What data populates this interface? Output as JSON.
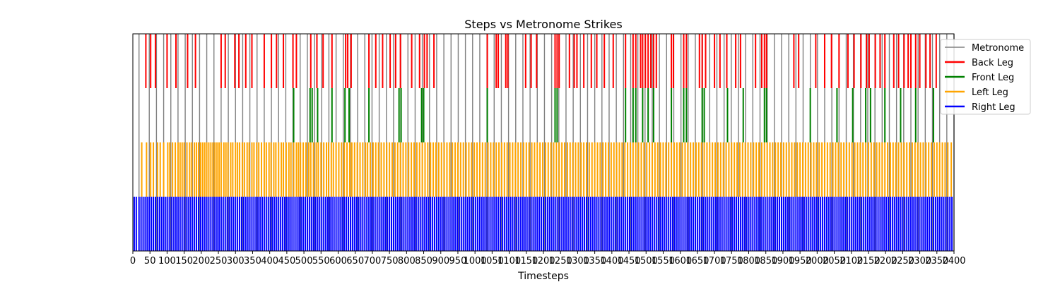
{
  "chart_data": {
    "type": "event-raster",
    "title": "Steps vs Metronome Strikes",
    "xlabel": "Timesteps",
    "ylabel": "",
    "xlim": [
      0,
      2400
    ],
    "xticks": [
      0,
      50,
      100,
      150,
      200,
      250,
      300,
      350,
      400,
      450,
      500,
      550,
      600,
      650,
      700,
      750,
      800,
      850,
      900,
      950,
      1000,
      1050,
      1100,
      1150,
      1200,
      1250,
      1300,
      1350,
      1400,
      1450,
      1500,
      1550,
      1600,
      1650,
      1700,
      1750,
      1800,
      1850,
      1900,
      1950,
      2000,
      2050,
      2100,
      2150,
      2200,
      2250,
      2300,
      2350,
      2400
    ],
    "legend_position": "upper right",
    "series": [
      {
        "name": "Metronome",
        "color": "#808080",
        "x": [
          18,
          48,
          69,
          90,
          111,
          132,
          153,
          174,
          195,
          216,
          237,
          258,
          279,
          300,
          321,
          342,
          363,
          384,
          405,
          426,
          447,
          468,
          489,
          510,
          531,
          552,
          573,
          594,
          615,
          636,
          657,
          678,
          699,
          720,
          741,
          762,
          783,
          804,
          825,
          846,
          867,
          888,
          909,
          930,
          951,
          972,
          993,
          1014,
          1035,
          1056,
          1077,
          1098,
          1119,
          1140,
          1161,
          1182,
          1203,
          1224,
          1245,
          1266,
          1287,
          1308,
          1329,
          1350,
          1371,
          1392,
          1413,
          1434,
          1455,
          1476,
          1497,
          1518,
          1539,
          1560,
          1581,
          1602,
          1623,
          1644,
          1665,
          1686,
          1707,
          1728,
          1749,
          1770,
          1791,
          1812,
          1833,
          1854,
          1875,
          1896,
          1917,
          1938,
          1959,
          1980,
          2001,
          2022,
          2043,
          2064,
          2085,
          2106,
          2127,
          2148,
          2169,
          2190,
          2211,
          2232,
          2253,
          2274,
          2295,
          2316,
          2337,
          2358,
          2379,
          2400
        ]
      },
      {
        "name": "Back Leg",
        "color": "#ff0000",
        "x": [
          38,
          52,
          66,
          100,
          126,
          160,
          183,
          258,
          270,
          298,
          310,
          330,
          348,
          384,
          405,
          420,
          440,
          468,
          478,
          520,
          538,
          556,
          582,
          622,
          628,
          638,
          690,
          710,
          730,
          752,
          768,
          782,
          815,
          838,
          852,
          860,
          880,
          1036,
          1062,
          1068,
          1090,
          1096,
          1148,
          1164,
          1180,
          1234,
          1240,
          1246,
          1276,
          1290,
          1298,
          1318,
          1340,
          1356,
          1378,
          1404,
          1440,
          1462,
          1470,
          1484,
          1490,
          1498,
          1506,
          1514,
          1522,
          1530,
          1574,
          1580,
          1610,
          1618,
          1656,
          1664,
          1674,
          1700,
          1716,
          1736,
          1762,
          1776,
          1820,
          1838,
          1846,
          1852,
          1932,
          1946,
          1996,
          2022,
          2042,
          2064,
          2090,
          2108,
          2128,
          2144,
          2152,
          2170,
          2184,
          2198,
          2224,
          2238,
          2254,
          2266,
          2274,
          2288,
          2300,
          2318,
          2330,
          2348
        ]
      },
      {
        "name": "Front Leg",
        "color": "#008000",
        "x": [
          470,
          518,
          524,
          540,
          582,
          620,
          632,
          690,
          778,
          784,
          844,
          850,
          1036,
          1234,
          1240,
          1440,
          1462,
          1470,
          1490,
          1506,
          1522,
          1574,
          1610,
          1618,
          1664,
          1670,
          1738,
          1784,
          1846,
          1852,
          1980,
          2058,
          2104,
          2142,
          2156,
          2198,
          2244,
          2288,
          2340
        ]
      },
      {
        "name": "Left Leg",
        "color": "#ffa500",
        "x": [
          26,
          40,
          52,
          60,
          72,
          80,
          90,
          102,
          108,
          116,
          124,
          132,
          138,
          144,
          150,
          158,
          166,
          172,
          180,
          186,
          192,
          198,
          204,
          210,
          216,
          222,
          228,
          234,
          240,
          246,
          252,
          258,
          266,
          272,
          278,
          286,
          292,
          300,
          306,
          312,
          320,
          326,
          334,
          340,
          348,
          354,
          362,
          368,
          376,
          384,
          390,
          398,
          404,
          412,
          418,
          426,
          434,
          440,
          448,
          456,
          462,
          470,
          478,
          484,
          490,
          498,
          506,
          514,
          520,
          528,
          536,
          542,
          550,
          558,
          566,
          572,
          580,
          586,
          594,
          602,
          610,
          618,
          626,
          634,
          640,
          648,
          656,
          664,
          672,
          680,
          686,
          694,
          702,
          710,
          718,
          726,
          734,
          742,
          750,
          758,
          766,
          774,
          782,
          790,
          798,
          806,
          814,
          822,
          830,
          838,
          846,
          854,
          862,
          870,
          878,
          886,
          894,
          902,
          910,
          918,
          926,
          934,
          942,
          950,
          958,
          966,
          974,
          982,
          990,
          998,
          1006,
          1014,
          1022,
          1030,
          1038,
          1046,
          1054,
          1062,
          1070,
          1078,
          1086,
          1094,
          1102,
          1110,
          1118,
          1126,
          1134,
          1142,
          1150,
          1158,
          1166,
          1174,
          1182,
          1190,
          1198,
          1206,
          1214,
          1222,
          1230,
          1238,
          1246,
          1254,
          1262,
          1270,
          1278,
          1286,
          1294,
          1302,
          1310,
          1318,
          1326,
          1334,
          1342,
          1350,
          1358,
          1366,
          1374,
          1382,
          1390,
          1398,
          1406,
          1414,
          1422,
          1430,
          1438,
          1446,
          1454,
          1462,
          1470,
          1478,
          1486,
          1494,
          1502,
          1510,
          1518,
          1526,
          1534,
          1542,
          1550,
          1558,
          1566,
          1574,
          1582,
          1590,
          1598,
          1606,
          1614,
          1622,
          1630,
          1638,
          1646,
          1654,
          1662,
          1670,
          1678,
          1686,
          1694,
          1702,
          1710,
          1718,
          1726,
          1734,
          1742,
          1750,
          1758,
          1766,
          1774,
          1782,
          1790,
          1798,
          1806,
          1814,
          1822,
          1830,
          1838,
          1846,
          1854,
          1862,
          1870,
          1878,
          1886,
          1894,
          1902,
          1910,
          1918,
          1926,
          1934,
          1942,
          1950,
          1958,
          1966,
          1974,
          1982,
          1990,
          1998,
          2006,
          2014,
          2022,
          2030,
          2038,
          2046,
          2054,
          2062,
          2070,
          2078,
          2086,
          2094,
          2102,
          2110,
          2118,
          2126,
          2134,
          2142,
          2150,
          2158,
          2166,
          2174,
          2182,
          2190,
          2198,
          2206,
          2214,
          2222,
          2230,
          2238,
          2246,
          2254,
          2262,
          2270,
          2278,
          2286,
          2294,
          2302,
          2310,
          2318,
          2326,
          2334,
          2342,
          2350,
          2358,
          2366,
          2374,
          2382,
          2392
        ]
      },
      {
        "name": "Right Leg",
        "color": "#0000ff",
        "x": [
          4,
          10,
          18,
          24,
          30,
          36,
          42,
          48,
          54,
          60,
          66,
          72,
          78,
          84,
          90,
          96,
          102,
          108,
          114,
          120,
          126,
          132,
          138,
          144,
          150,
          156,
          162,
          168,
          174,
          180,
          186,
          192,
          198,
          204,
          210,
          216,
          222,
          228,
          234,
          240,
          246,
          252,
          258,
          264,
          270,
          276,
          282,
          288,
          294,
          300,
          306,
          312,
          318,
          324,
          330,
          336,
          342,
          348,
          354,
          360,
          366,
          372,
          378,
          384,
          390,
          396,
          402,
          408,
          414,
          420,
          426,
          432,
          438,
          444,
          450,
          456,
          462,
          468,
          474,
          480,
          486,
          492,
          498,
          504,
          510,
          516,
          522,
          528,
          534,
          540,
          546,
          552,
          558,
          564,
          570,
          576,
          582,
          588,
          594,
          600,
          606,
          612,
          618,
          624,
          630,
          636,
          642,
          648,
          654,
          660,
          666,
          672,
          678,
          684,
          690,
          696,
          702,
          708,
          714,
          720,
          726,
          732,
          738,
          744,
          750,
          756,
          762,
          768,
          774,
          780,
          786,
          792,
          798,
          804,
          810,
          816,
          822,
          828,
          834,
          840,
          846,
          852,
          858,
          864,
          870,
          876,
          882,
          888,
          894,
          900,
          906,
          912,
          918,
          924,
          930,
          936,
          942,
          948,
          954,
          960,
          966,
          972,
          978,
          984,
          990,
          996,
          1002,
          1008,
          1014,
          1020,
          1026,
          1032,
          1038,
          1044,
          1050,
          1056,
          1062,
          1068,
          1074,
          1080,
          1086,
          1092,
          1098,
          1104,
          1110,
          1116,
          1122,
          1128,
          1134,
          1140,
          1146,
          1152,
          1158,
          1164,
          1170,
          1176,
          1182,
          1188,
          1194,
          1200,
          1206,
          1212,
          1218,
          1224,
          1230,
          1236,
          1242,
          1248,
          1254,
          1260,
          1266,
          1272,
          1278,
          1284,
          1290,
          1296,
          1302,
          1308,
          1314,
          1320,
          1326,
          1332,
          1338,
          1344,
          1350,
          1356,
          1362,
          1368,
          1374,
          1380,
          1386,
          1392,
          1398,
          1404,
          1410,
          1416,
          1422,
          1428,
          1434,
          1440,
          1446,
          1452,
          1458,
          1464,
          1470,
          1476,
          1482,
          1488,
          1494,
          1500,
          1506,
          1512,
          1518,
          1524,
          1530,
          1536,
          1542,
          1548,
          1554,
          1560,
          1566,
          1572,
          1578,
          1584,
          1590,
          1596,
          1602,
          1608,
          1614,
          1620,
          1626,
          1632,
          1638,
          1644,
          1650,
          1656,
          1662,
          1668,
          1674,
          1680,
          1686,
          1692,
          1698,
          1704,
          1710,
          1716,
          1722,
          1728,
          1734,
          1740,
          1746,
          1752,
          1758,
          1764,
          1770,
          1776,
          1782,
          1788,
          1794,
          1800,
          1806,
          1812,
          1818,
          1824,
          1830,
          1836,
          1842,
          1848,
          1854,
          1860,
          1866,
          1872,
          1878,
          1884,
          1890,
          1896,
          1902,
          1908,
          1914,
          1920,
          1926,
          1932,
          1938,
          1944,
          1950,
          1956,
          1962,
          1968,
          1974,
          1980,
          1986,
          1992,
          1998,
          2004,
          2010,
          2016,
          2022,
          2028,
          2034,
          2040,
          2046,
          2052,
          2058,
          2064,
          2070,
          2076,
          2082,
          2088,
          2094,
          2100,
          2106,
          2112,
          2118,
          2124,
          2130,
          2136,
          2142,
          2148,
          2154,
          2160,
          2166,
          2172,
          2178,
          2184,
          2190,
          2196,
          2202,
          2208,
          2214,
          2220,
          2226,
          2232,
          2238,
          2244,
          2250,
          2256,
          2262,
          2268,
          2274,
          2280,
          2286,
          2292,
          2298,
          2304,
          2310,
          2316,
          2322,
          2328,
          2334,
          2340,
          2346,
          2352,
          2358,
          2364,
          2370,
          2376,
          2382,
          2388,
          2394
        ]
      }
    ]
  }
}
